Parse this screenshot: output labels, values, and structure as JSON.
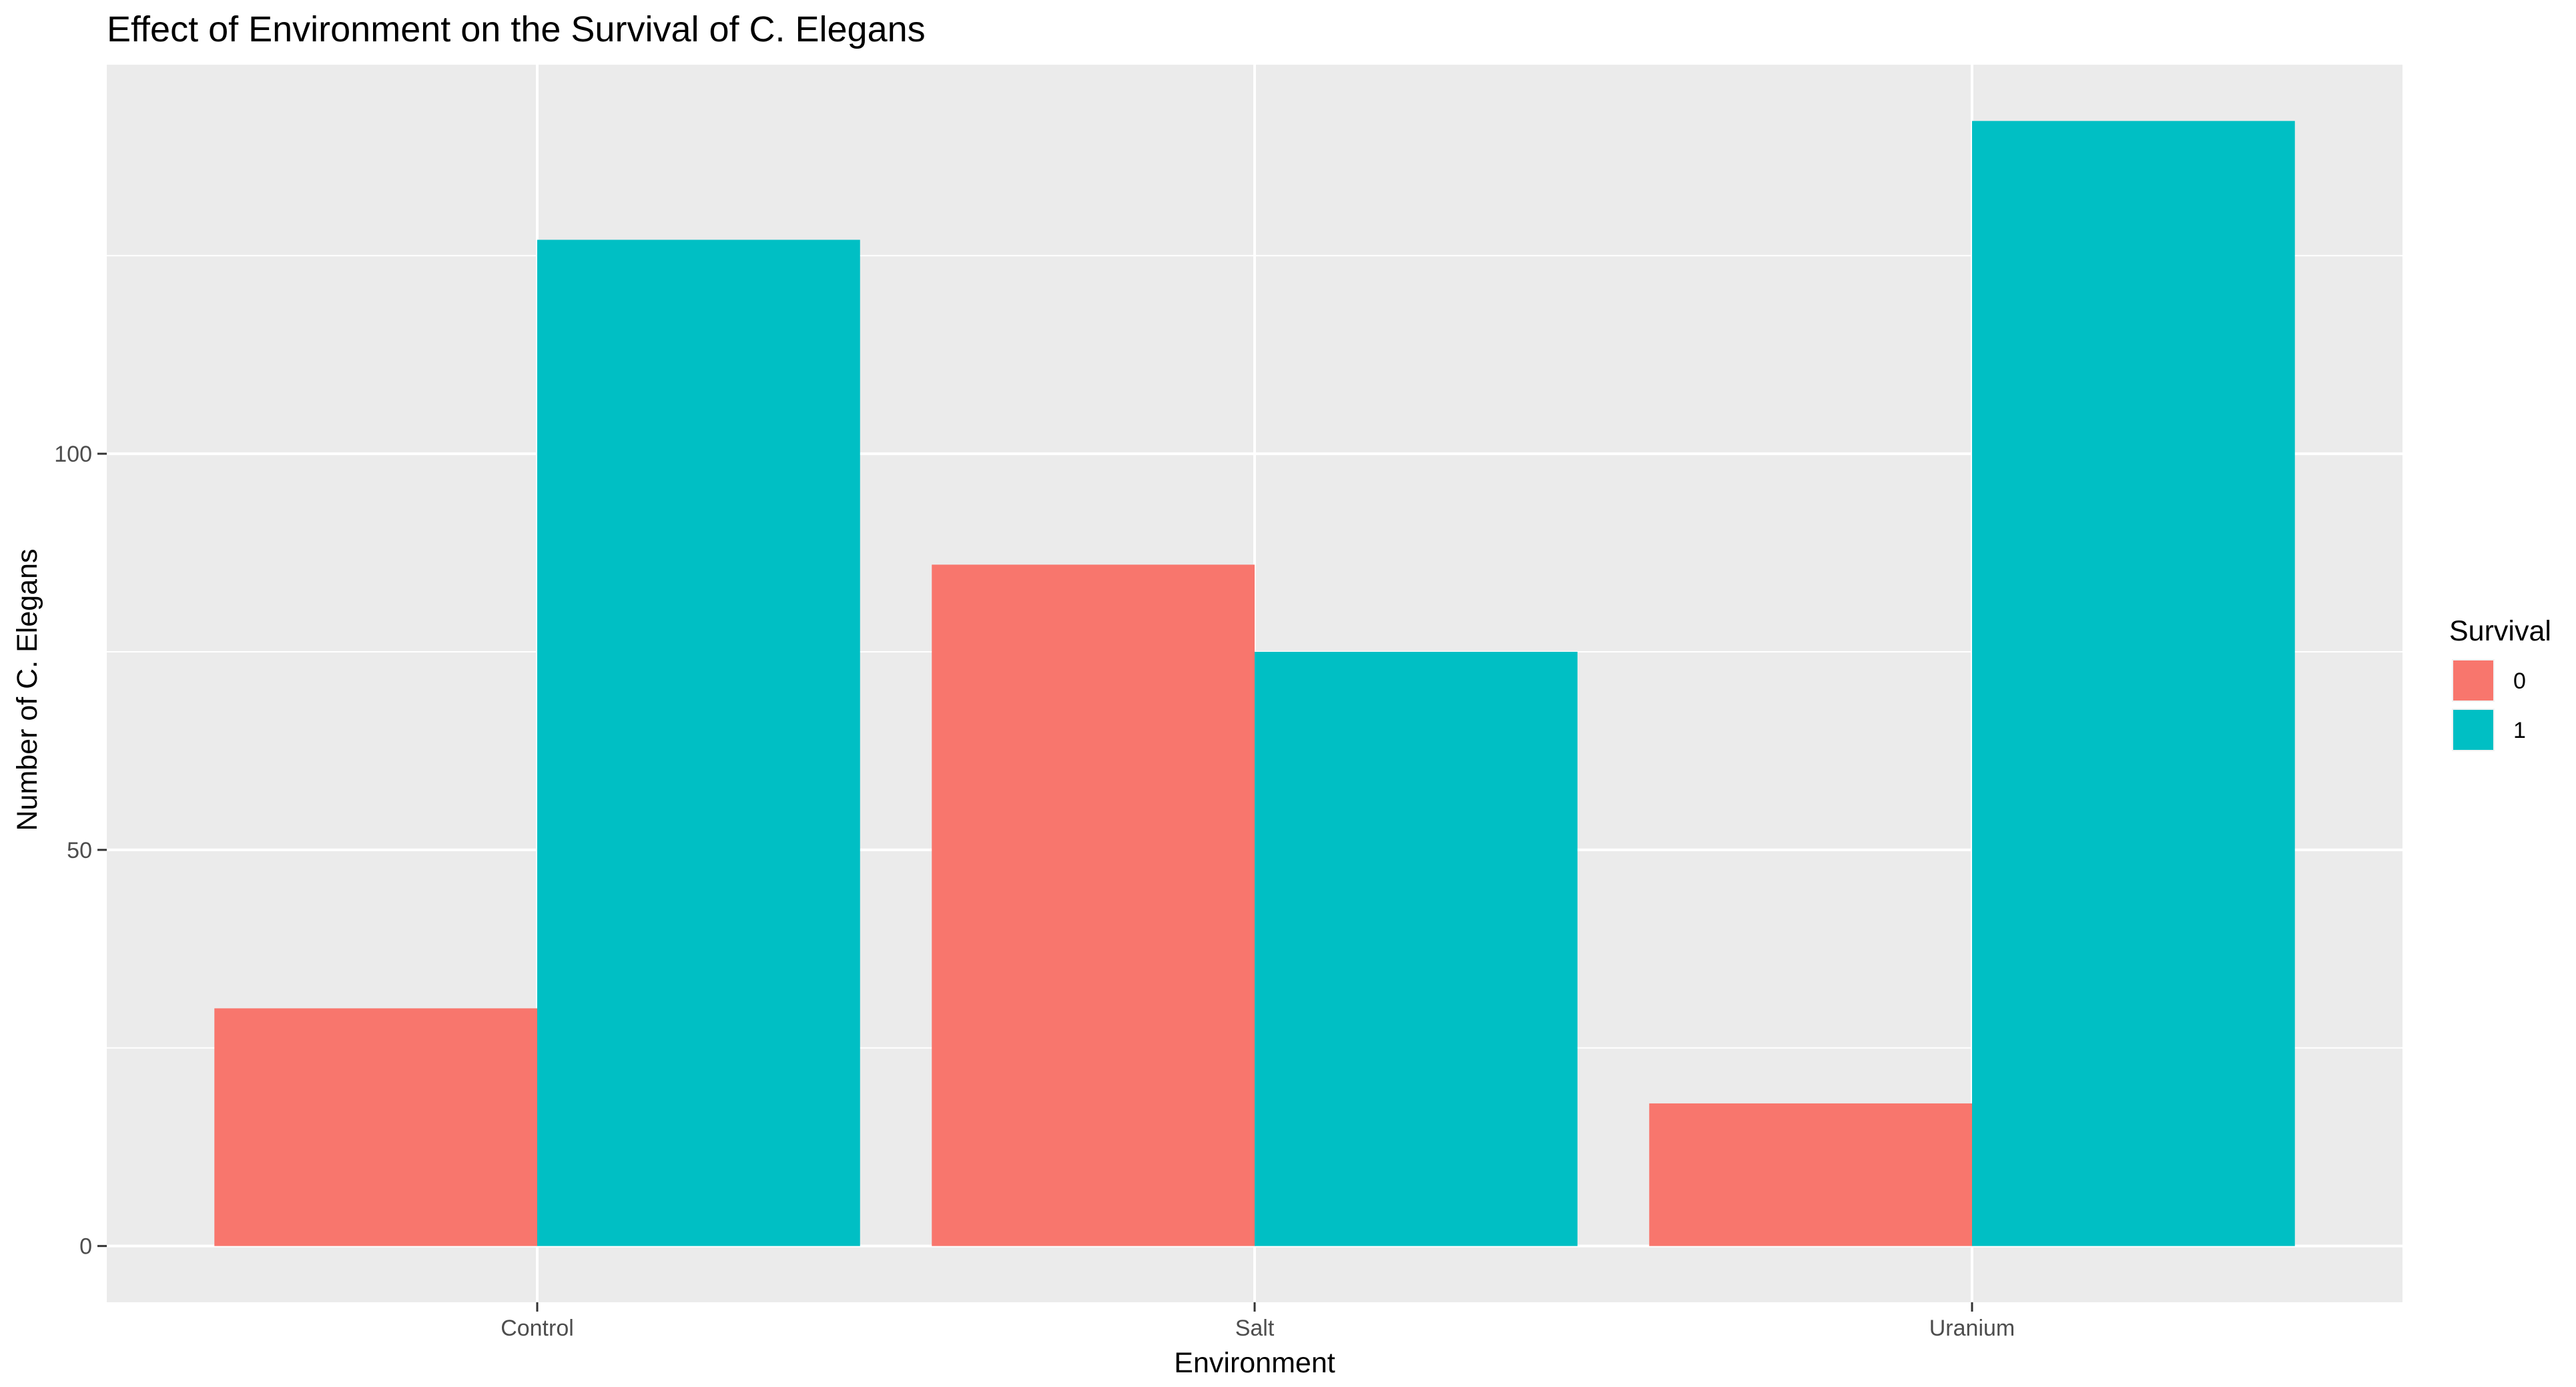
{
  "chart_data": {
    "type": "bar",
    "title": "Effect of Environment on the Survival of C. Elegans",
    "xlabel": "Environment",
    "ylabel": "Number of C. Elegans",
    "categories": [
      "Control",
      "Salt",
      "Uranium"
    ],
    "series": [
      {
        "name": "0",
        "values": [
          30,
          86,
          18
        ],
        "color": "#F8766D"
      },
      {
        "name": "1",
        "values": [
          127,
          75,
          142
        ],
        "color": "#00BFC4"
      }
    ],
    "ylim": [
      -7.1,
      149.1
    ],
    "yticks": [
      0,
      50,
      100
    ],
    "ytick_labels": [
      "0",
      "50",
      "100"
    ],
    "grid": true,
    "legend": {
      "title": "Survival",
      "position": "right"
    },
    "panel_background": "#EBEBEB",
    "grid_color": "#FFFFFF"
  }
}
